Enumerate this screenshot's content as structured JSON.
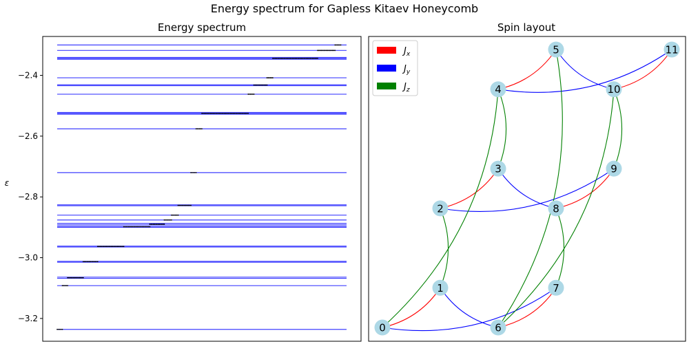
{
  "figure": {
    "title": "Energy spectrum for Gapless Kitaev Honeycomb"
  },
  "chart_data": [
    {
      "type": "line",
      "title": "Energy spectrum",
      "xlabel": "",
      "ylabel": "ε",
      "ylim": [
        -3.275,
        -2.272
      ],
      "yticks": [
        -3.2,
        -3.0,
        -2.8,
        -2.6,
        -2.4
      ],
      "ytick_labels": [
        "−3.2",
        "−3.0",
        "−2.8",
        "−2.6",
        "−2.4"
      ],
      "x_ticks_visible": false,
      "grid": false,
      "line_color": "#0000ff",
      "marker_color": "#000000",
      "levels": [
        -3.236,
        -3.092,
        -3.068,
        -3.064,
        -3.015,
        -3.012,
        -2.965,
        -2.962,
        -2.9,
        -2.897,
        -2.892,
        -2.887,
        -2.876,
        -2.86,
        -2.829,
        -2.826,
        -2.72,
        -2.576,
        -2.528,
        -2.525,
        -2.522,
        -2.462,
        -2.434,
        -2.431,
        -2.408,
        -2.347,
        -2.344,
        -2.341,
        -2.318,
        -2.3
      ],
      "points": [
        {
          "y": -3.236,
          "x": [
            0.0,
            0.018
          ]
        },
        {
          "y": -3.092,
          "x": [
            0.018,
            0.036
          ]
        },
        {
          "y": -3.066,
          "x": [
            0.036,
            0.09
          ]
        },
        {
          "y": -3.013,
          "x": [
            0.09,
            0.14
          ]
        },
        {
          "y": -2.963,
          "x": [
            0.14,
            0.23
          ]
        },
        {
          "y": -2.898,
          "x": [
            0.23,
            0.32
          ]
        },
        {
          "y": -2.89,
          "x": [
            0.32,
            0.37
          ]
        },
        {
          "y": -2.876,
          "x": [
            0.37,
            0.395
          ]
        },
        {
          "y": -2.86,
          "x": [
            0.395,
            0.418
          ]
        },
        {
          "y": -2.828,
          "x": [
            0.418,
            0.462
          ]
        },
        {
          "y": -2.72,
          "x": [
            0.462,
            0.48
          ]
        },
        {
          "y": -2.576,
          "x": [
            0.48,
            0.5
          ]
        },
        {
          "y": -2.525,
          "x": [
            0.5,
            0.66
          ]
        },
        {
          "y": -2.462,
          "x": [
            0.66,
            0.68
          ]
        },
        {
          "y": -2.432,
          "x": [
            0.68,
            0.725
          ]
        },
        {
          "y": -2.408,
          "x": [
            0.725,
            0.745
          ]
        },
        {
          "y": -2.344,
          "x": [
            0.745,
            0.9
          ]
        },
        {
          "y": -2.318,
          "x": [
            0.9,
            0.96
          ]
        },
        {
          "y": -2.3,
          "x": [
            0.96,
            0.98
          ]
        }
      ]
    },
    {
      "type": "network",
      "title": "Spin layout",
      "nodes": [
        {
          "id": "0",
          "x": 0.0,
          "y": 0.0
        },
        {
          "id": "1",
          "x": 0.5,
          "y": 1.0
        },
        {
          "id": "2",
          "x": 0.5,
          "y": 3.0
        },
        {
          "id": "3",
          "x": 1.0,
          "y": 4.0
        },
        {
          "id": "4",
          "x": 1.0,
          "y": 6.0
        },
        {
          "id": "5",
          "x": 1.5,
          "y": 7.0
        },
        {
          "id": "6",
          "x": 1.0,
          "y": 0.0
        },
        {
          "id": "7",
          "x": 1.5,
          "y": 1.0
        },
        {
          "id": "8",
          "x": 1.5,
          "y": 3.0
        },
        {
          "id": "9",
          "x": 2.0,
          "y": 4.0
        },
        {
          "id": "10",
          "x": 2.0,
          "y": 6.0
        },
        {
          "id": "11",
          "x": 2.5,
          "y": 7.0
        }
      ],
      "edges": [
        {
          "from": "0",
          "to": "1",
          "coupling": "x"
        },
        {
          "from": "2",
          "to": "3",
          "coupling": "x"
        },
        {
          "from": "4",
          "to": "5",
          "coupling": "x"
        },
        {
          "from": "6",
          "to": "7",
          "coupling": "x"
        },
        {
          "from": "8",
          "to": "9",
          "coupling": "x"
        },
        {
          "from": "10",
          "to": "11",
          "coupling": "x"
        },
        {
          "from": "0",
          "to": "7",
          "coupling": "y"
        },
        {
          "from": "1",
          "to": "6",
          "coupling": "y"
        },
        {
          "from": "2",
          "to": "9",
          "coupling": "y"
        },
        {
          "from": "3",
          "to": "8",
          "coupling": "y"
        },
        {
          "from": "4",
          "to": "11",
          "coupling": "y"
        },
        {
          "from": "5",
          "to": "10",
          "coupling": "y"
        },
        {
          "from": "0",
          "to": "4",
          "coupling": "z"
        },
        {
          "from": "1",
          "to": "2",
          "coupling": "z"
        },
        {
          "from": "3",
          "to": "4",
          "coupling": "z"
        },
        {
          "from": "6",
          "to": "10",
          "coupling": "z"
        },
        {
          "from": "7",
          "to": "8",
          "coupling": "z"
        },
        {
          "from": "9",
          "to": "10",
          "coupling": "z"
        },
        {
          "from": "6",
          "to": "5",
          "coupling": "z"
        },
        {
          "from": "0",
          "to": "4",
          "coupling": "z2"
        }
      ],
      "legend": {
        "placement": "top-left",
        "entries": [
          {
            "key": "x",
            "sub": "x",
            "color": "#ff0000"
          },
          {
            "key": "y",
            "sub": "y",
            "color": "#0000ff"
          },
          {
            "key": "z",
            "sub": "z",
            "color": "#008000"
          }
        ]
      },
      "node_color": "#add8e6"
    }
  ]
}
